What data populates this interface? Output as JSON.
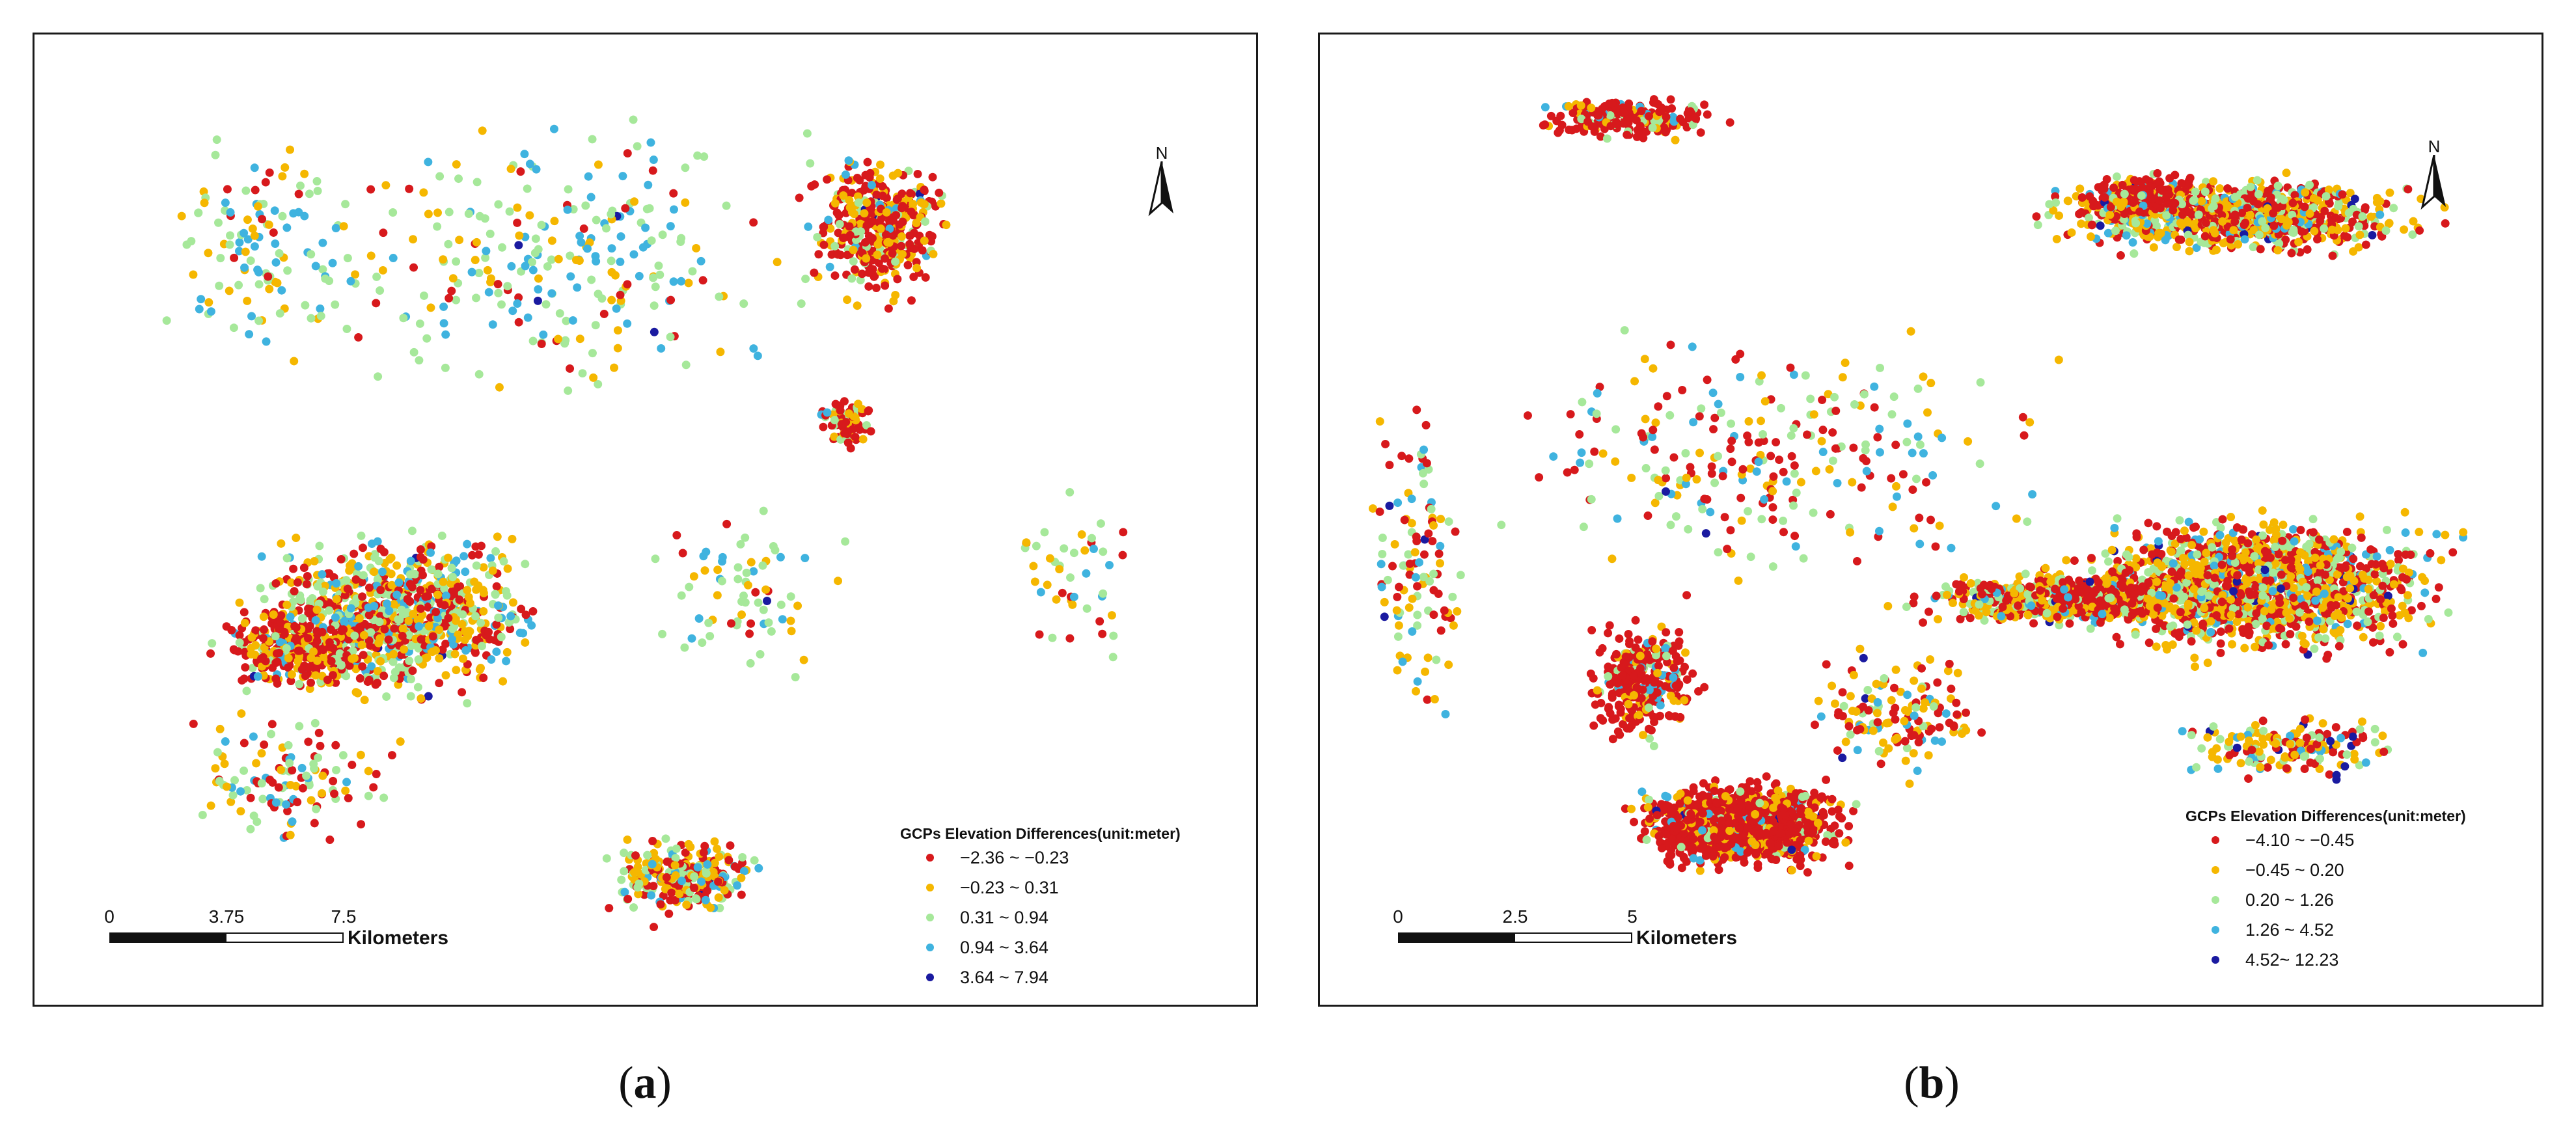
{
  "panels": [
    {
      "id": "a",
      "caption": {
        "open": "(",
        "letter": "a",
        "close": ")"
      },
      "north_label": "N",
      "legend": {
        "title": "GCPs Elevation Differences(unit:meter)",
        "classes": [
          {
            "label": "−2.36 ~ −0.23",
            "color": "#d7191c"
          },
          {
            "label": "−0.23 ~ 0.31",
            "color": "#f5b700"
          },
          {
            "label": "0.31 ~ 0.94",
            "color": "#a6e89a"
          },
          {
            "label": "0.94 ~ 3.64",
            "color": "#3fb3df"
          },
          {
            "label": "3.64 ~ 7.94",
            "color": "#1a1aa0"
          }
        ]
      },
      "scale_bar": {
        "ticks": [
          "0",
          "3.75",
          "7.5"
        ],
        "unit": "Kilometers"
      }
    },
    {
      "id": "b",
      "caption": {
        "open": "(",
        "letter": "b",
        "close": ")"
      },
      "north_label": "N",
      "legend": {
        "title": "GCPs Elevation Differences(unit:meter)",
        "classes": [
          {
            "label": "−4.10 ~ −0.45",
            "color": "#d7191c"
          },
          {
            "label": "−0.45 ~ 0.20",
            "color": "#f5b700"
          },
          {
            "label": "0.20 ~ 1.26",
            "color": "#a6e89a"
          },
          {
            "label": "1.26 ~ 4.52",
            "color": "#3fb3df"
          },
          {
            "label": "4.52~ 12.23",
            "color": "#1a1aa0"
          }
        ]
      },
      "scale_bar": {
        "ticks": [
          "0",
          "2.5",
          "5"
        ],
        "unit": "Kilometers"
      }
    }
  ]
}
